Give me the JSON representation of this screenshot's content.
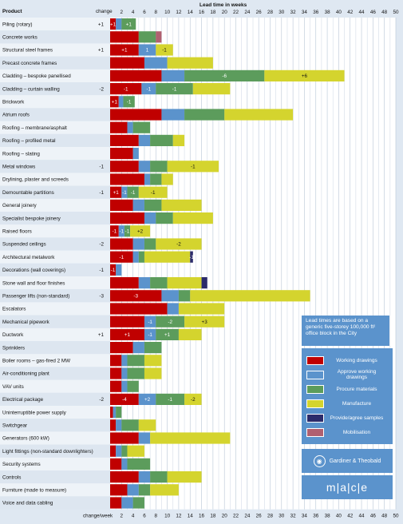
{
  "chart_data": {
    "type": "bar",
    "orientation": "horizontal-stacked-gantt",
    "title": "Lead time in weeks",
    "xlabel": "Lead time in weeks",
    "row_header": "Product",
    "change_header": "change",
    "footer_change_label": "change/week",
    "xlim": [
      0,
      50
    ],
    "x_ticks": [
      2,
      4,
      6,
      8,
      10,
      12,
      14,
      16,
      18,
      20,
      22,
      24,
      26,
      28,
      30,
      32,
      34,
      36,
      38,
      40,
      42,
      44,
      46,
      48,
      50
    ],
    "stages": [
      {
        "key": "wd",
        "name": "Working drawings",
        "color": "#c00000"
      },
      {
        "key": "aw",
        "name": "Approve working drawings",
        "color": "#5b93cc"
      },
      {
        "key": "pm",
        "name": "Procure materials",
        "color": "#5c9c5c"
      },
      {
        "key": "mf",
        "name": "Manufacture",
        "color": "#d4d42e"
      },
      {
        "key": "ps",
        "name": "Provide/agree samples",
        "color": "#2b2b6b"
      },
      {
        "key": "mb",
        "name": "Mobilisation",
        "color": "#b06070"
      }
    ],
    "rows": [
      {
        "name": "Piling (rotary)",
        "change": "+1",
        "segments": [
          {
            "s": "wd",
            "w": 1.0,
            "lbl": "+1"
          },
          {
            "s": "aw",
            "w": 1.0
          },
          {
            "s": "pm",
            "w": 2.5,
            "lbl": "+1"
          }
        ]
      },
      {
        "name": "Concrete works",
        "change": "",
        "segments": [
          {
            "s": "wd",
            "w": 5.0
          },
          {
            "s": "aw",
            "w": 0
          },
          {
            "s": "pm",
            "w": 3.0
          },
          {
            "s": "mb",
            "w": 1.0
          }
        ]
      },
      {
        "name": "Structural steel frames",
        "change": "+1",
        "segments": [
          {
            "s": "wd",
            "w": 5.0,
            "lbl": "+1"
          },
          {
            "s": "aw",
            "w": 3.0,
            "lbl": "1"
          },
          {
            "s": "mf",
            "w": 3.0,
            "lbl": "-1"
          }
        ]
      },
      {
        "name": "Precast concrete frames",
        "change": "",
        "segments": [
          {
            "s": "wd",
            "w": 6.0
          },
          {
            "s": "aw",
            "w": 4.0
          },
          {
            "s": "mf",
            "w": 8.0
          }
        ]
      },
      {
        "name": "Cladding – bespoke panellised",
        "change": "",
        "segments": [
          {
            "s": "wd",
            "w": 9.0
          },
          {
            "s": "aw",
            "w": 4.0
          },
          {
            "s": "pm",
            "w": 14.0,
            "lbl": "-6"
          },
          {
            "s": "mf",
            "w": 14.0,
            "lbl": "+6"
          }
        ]
      },
      {
        "name": "Cladding – curtain walling",
        "change": "-2",
        "segments": [
          {
            "s": "wd",
            "w": 5.5,
            "lbl": "-1"
          },
          {
            "s": "aw",
            "w": 2.5,
            "lbl": "-1"
          },
          {
            "s": "pm",
            "w": 6.5,
            "lbl": "-1"
          },
          {
            "s": "mf",
            "w": 6.5
          }
        ]
      },
      {
        "name": "Brickwork",
        "change": "",
        "segments": [
          {
            "s": "wd",
            "w": 1.5,
            "lbl": "+1"
          },
          {
            "s": "aw",
            "w": 0.8
          },
          {
            "s": "pm",
            "w": 2.0,
            "lbl": "-1"
          }
        ]
      },
      {
        "name": "Atrium roofs",
        "change": "",
        "segments": [
          {
            "s": "wd",
            "w": 9.0
          },
          {
            "s": "aw",
            "w": 4.0
          },
          {
            "s": "pm",
            "w": 7.0
          },
          {
            "s": "mf",
            "w": 12.0
          }
        ]
      },
      {
        "name": "Roofing – membrane/asphalt",
        "change": "",
        "segments": [
          {
            "s": "wd",
            "w": 3.0
          },
          {
            "s": "aw",
            "w": 1.0
          },
          {
            "s": "pm",
            "w": 3.0
          }
        ]
      },
      {
        "name": "Roofing – profiled metal",
        "change": "",
        "segments": [
          {
            "s": "wd",
            "w": 5.0
          },
          {
            "s": "aw",
            "w": 2.0
          },
          {
            "s": "pm",
            "w": 4.0
          },
          {
            "s": "mf",
            "w": 2.0
          }
        ]
      },
      {
        "name": "Roofing – slating",
        "change": "",
        "segments": [
          {
            "s": "wd",
            "w": 4.0
          },
          {
            "s": "aw",
            "w": 1.0
          }
        ]
      },
      {
        "name": "Metal windows",
        "change": "-1",
        "segments": [
          {
            "s": "wd",
            "w": 5.0
          },
          {
            "s": "aw",
            "w": 2.0
          },
          {
            "s": "pm",
            "w": 3.0
          },
          {
            "s": "mf",
            "w": 9.0,
            "lbl": "-1"
          }
        ]
      },
      {
        "name": "Drylining, plaster and screeds",
        "change": "",
        "segments": [
          {
            "s": "wd",
            "w": 6.0
          },
          {
            "s": "aw",
            "w": 1.0
          },
          {
            "s": "pm",
            "w": 2.0
          },
          {
            "s": "mf",
            "w": 2.0
          }
        ]
      },
      {
        "name": "Demountable partitions",
        "change": "-1",
        "segments": [
          {
            "s": "wd",
            "w": 2.0,
            "lbl": "+1"
          },
          {
            "s": "aw",
            "w": 1.0,
            "lbl": "-1"
          },
          {
            "s": "pm",
            "w": 2.0,
            "lbl": "-1"
          },
          {
            "s": "mf",
            "w": 5.0,
            "lbl": "-1"
          }
        ]
      },
      {
        "name": "General joinery",
        "change": "",
        "segments": [
          {
            "s": "wd",
            "w": 4.0
          },
          {
            "s": "aw",
            "w": 2.0
          },
          {
            "s": "pm",
            "w": 3.0
          },
          {
            "s": "mf",
            "w": 7.0
          }
        ]
      },
      {
        "name": "Specialist bespoke joinery",
        "change": "",
        "segments": [
          {
            "s": "wd",
            "w": 6.0
          },
          {
            "s": "aw",
            "w": 2.0
          },
          {
            "s": "pm",
            "w": 3.0
          },
          {
            "s": "mf",
            "w": 7.0
          }
        ]
      },
      {
        "name": "Raised floors",
        "change": "",
        "segments": [
          {
            "s": "wd",
            "w": 1.5,
            "lbl": "-1"
          },
          {
            "s": "aw",
            "w": 1.0,
            "lbl": "-1"
          },
          {
            "s": "pm",
            "w": 1.0,
            "lbl": "-1"
          },
          {
            "s": "mf",
            "w": 3.5,
            "lbl": "+2"
          }
        ]
      },
      {
        "name": "Suspended ceilings",
        "change": "-2",
        "segments": [
          {
            "s": "wd",
            "w": 4.0
          },
          {
            "s": "aw",
            "w": 2.0
          },
          {
            "s": "pm",
            "w": 2.0
          },
          {
            "s": "mf",
            "w": 8.0,
            "lbl": "-2"
          }
        ]
      },
      {
        "name": "Architectural metalwork",
        "change": "",
        "segments": [
          {
            "s": "wd",
            "w": 4.0,
            "lbl": "-1"
          },
          {
            "s": "aw",
            "w": 1.0
          },
          {
            "s": "pm",
            "w": 1.0
          },
          {
            "s": "mf",
            "w": 8.0
          },
          {
            "s": "ps",
            "w": 0.5,
            "lbl": "-1"
          }
        ]
      },
      {
        "name": "Decorations (wall coverings)",
        "change": "-1",
        "segments": [
          {
            "s": "wd",
            "w": 1.0,
            "lbl": "-1"
          },
          {
            "s": "aw",
            "w": 1.0
          }
        ]
      },
      {
        "name": "Stone wall and floor finishes",
        "change": "",
        "segments": [
          {
            "s": "wd",
            "w": 5.0
          },
          {
            "s": "aw",
            "w": 2.0
          },
          {
            "s": "pm",
            "w": 3.0
          },
          {
            "s": "mf",
            "w": 6.0
          },
          {
            "s": "ps",
            "w": 1.0
          }
        ]
      },
      {
        "name": "Passenger lifts (non-standard)",
        "change": "-3",
        "segments": [
          {
            "s": "wd",
            "w": 9.0,
            "lbl": "-3"
          },
          {
            "s": "aw",
            "w": 3.0
          },
          {
            "s": "pm",
            "w": 2.0
          },
          {
            "s": "mf",
            "w": 21.0
          }
        ]
      },
      {
        "name": "Escalators",
        "change": "",
        "segments": [
          {
            "s": "wd",
            "w": 10.0
          },
          {
            "s": "aw",
            "w": 2.0
          },
          {
            "s": "mf",
            "w": 8.0
          }
        ]
      },
      {
        "name": "Mechanical pipework",
        "change": "",
        "segments": [
          {
            "s": "wd",
            "w": 6.0
          },
          {
            "s": "aw",
            "w": 2.0,
            "lbl": "-1"
          },
          {
            "s": "pm",
            "w": 5.0,
            "lbl": "-2"
          },
          {
            "s": "mf",
            "w": 7.0,
            "lbl": "+3"
          }
        ]
      },
      {
        "name": "Ductwork",
        "change": "+1",
        "segments": [
          {
            "s": "wd",
            "w": 6.0,
            "lbl": "+1"
          },
          {
            "s": "aw",
            "w": 2.0,
            "lbl": "-1"
          },
          {
            "s": "pm",
            "w": 4.0,
            "lbl": "+1"
          },
          {
            "s": "mf",
            "w": 4.0
          }
        ]
      },
      {
        "name": "Sprinklers",
        "change": "",
        "segments": [
          {
            "s": "wd",
            "w": 4.0
          },
          {
            "s": "aw",
            "w": 2.0
          },
          {
            "s": "pm",
            "w": 3.0
          }
        ]
      },
      {
        "name": "Boiler rooms – gas-fired 2 MW",
        "change": "",
        "segments": [
          {
            "s": "wd",
            "w": 2.0
          },
          {
            "s": "aw",
            "w": 1.0
          },
          {
            "s": "pm",
            "w": 3.0
          },
          {
            "s": "mf",
            "w": 3.0
          }
        ]
      },
      {
        "name": "Air-conditioning plant",
        "change": "",
        "segments": [
          {
            "s": "wd",
            "w": 2.0
          },
          {
            "s": "aw",
            "w": 1.0
          },
          {
            "s": "pm",
            "w": 3.0
          },
          {
            "s": "mf",
            "w": 3.0
          }
        ]
      },
      {
        "name": "VAV units",
        "change": "",
        "segments": [
          {
            "s": "wd",
            "w": 2.0
          },
          {
            "s": "aw",
            "w": 1.0
          },
          {
            "s": "pm",
            "w": 2.0
          }
        ]
      },
      {
        "name": "Electrical package",
        "change": "-2",
        "segments": [
          {
            "s": "wd",
            "w": 5.0,
            "lbl": "-4"
          },
          {
            "s": "aw",
            "w": 3.0,
            "lbl": "+2"
          },
          {
            "s": "pm",
            "w": 5.0,
            "lbl": "-1"
          },
          {
            "s": "mf",
            "w": 3.0,
            "lbl": "-2"
          }
        ]
      },
      {
        "name": "Uninterruptible power supply",
        "change": "",
        "segments": [
          {
            "s": "wd",
            "w": 0.5
          },
          {
            "s": "aw",
            "w": 0.5
          },
          {
            "s": "pm",
            "w": 1.0
          }
        ]
      },
      {
        "name": "Switchgear",
        "change": "",
        "segments": [
          {
            "s": "wd",
            "w": 1.0
          },
          {
            "s": "aw",
            "w": 1.0
          },
          {
            "s": "pm",
            "w": 3.0
          },
          {
            "s": "mf",
            "w": 3.0
          }
        ]
      },
      {
        "name": "Generators (600 kW)",
        "change": "",
        "segments": [
          {
            "s": "wd",
            "w": 5.0
          },
          {
            "s": "aw",
            "w": 2.0
          },
          {
            "s": "mf",
            "w": 14.0
          }
        ]
      },
      {
        "name": "Light fittings (non-standard downlighters)",
        "change": "",
        "segments": [
          {
            "s": "wd",
            "w": 1.0
          },
          {
            "s": "aw",
            "w": 1.0
          },
          {
            "s": "pm",
            "w": 1.0
          },
          {
            "s": "mf",
            "w": 3.0
          }
        ]
      },
      {
        "name": "Security systems",
        "change": "",
        "segments": [
          {
            "s": "wd",
            "w": 2.0
          },
          {
            "s": "aw",
            "w": 1.0
          },
          {
            "s": "pm",
            "w": 4.0
          }
        ]
      },
      {
        "name": "Controls",
        "change": "",
        "segments": [
          {
            "s": "wd",
            "w": 5.0
          },
          {
            "s": "aw",
            "w": 2.0
          },
          {
            "s": "pm",
            "w": 3.0
          },
          {
            "s": "mf",
            "w": 6.0
          }
        ]
      },
      {
        "name": "Furniture (made to measure)",
        "change": "",
        "segments": [
          {
            "s": "wd",
            "w": 3.0
          },
          {
            "s": "aw",
            "w": 2.0
          },
          {
            "s": "pm",
            "w": 2.0
          },
          {
            "s": "mf",
            "w": 5.0
          }
        ]
      },
      {
        "name": "Voice and data cabling",
        "change": "",
        "segments": [
          {
            "s": "wd",
            "w": 2.0
          },
          {
            "s": "aw",
            "w": 2.0
          },
          {
            "s": "pm",
            "w": 2.0
          }
        ]
      }
    ]
  },
  "note": "Lead times are based on a generic five-storey 100,000 ft² office block in the City",
  "legend_items": [
    {
      "label": "Working drawings",
      "color": "#c00000"
    },
    {
      "label": "Approve working drawings",
      "color": "#5b93cc"
    },
    {
      "label": "Procure materials",
      "color": "#5c9c5c"
    },
    {
      "label": "Manufacture",
      "color": "#d4d42e"
    },
    {
      "label": "Provide/agree samples",
      "color": "#2b2b6b"
    },
    {
      "label": "Mobilisation",
      "color": "#b06070"
    }
  ],
  "credits": {
    "gt": "Gardiner & Theobald",
    "mace": "m|a|c|e"
  }
}
